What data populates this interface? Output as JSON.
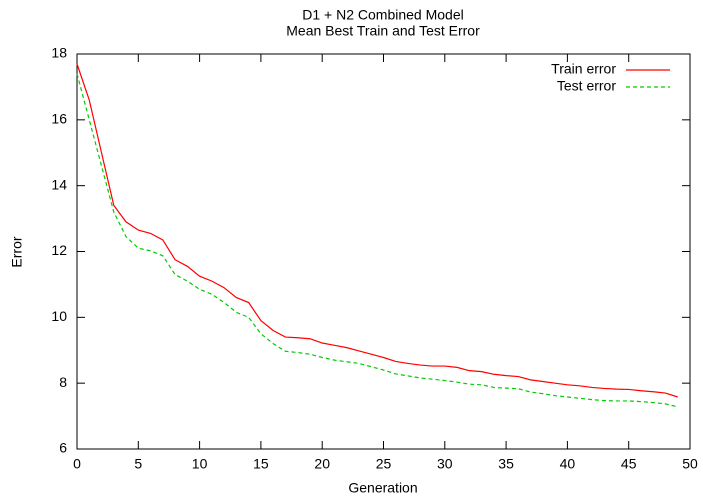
{
  "chart_data": {
    "type": "line",
    "title": "D1 + N2 Combined Model",
    "subtitle": "Mean Best Train and Test Error",
    "x_label": "Generation",
    "y_label": "Error",
    "x": [
      0,
      1,
      2,
      3,
      4,
      5,
      6,
      7,
      8,
      9,
      10,
      11,
      12,
      13,
      14,
      15,
      16,
      17,
      18,
      19,
      20,
      21,
      22,
      23,
      24,
      25,
      26,
      27,
      28,
      29,
      30,
      31,
      32,
      33,
      34,
      35,
      36,
      37,
      38,
      39,
      40,
      41,
      42,
      43,
      44,
      45,
      46,
      47,
      48,
      49
    ],
    "series": [
      {
        "name": "Train error",
        "color": "#ff0000",
        "dash": "none",
        "values": [
          17.7,
          16.6,
          15.0,
          13.4,
          12.9,
          12.65,
          12.55,
          12.35,
          11.75,
          11.55,
          11.25,
          11.1,
          10.9,
          10.6,
          10.45,
          9.9,
          9.6,
          9.4,
          9.38,
          9.35,
          9.22,
          9.15,
          9.08,
          8.98,
          8.88,
          8.78,
          8.66,
          8.6,
          8.55,
          8.52,
          8.52,
          8.48,
          8.38,
          8.35,
          8.27,
          8.23,
          8.2,
          8.1,
          8.05,
          8.0,
          7.95,
          7.92,
          7.87,
          7.84,
          7.82,
          7.81,
          7.77,
          7.74,
          7.7,
          7.58
        ]
      },
      {
        "name": "Test error",
        "color": "#00cc00",
        "dash": "4 3",
        "values": [
          17.4,
          16.0,
          14.6,
          13.2,
          12.45,
          12.1,
          12.02,
          11.87,
          11.3,
          11.1,
          10.85,
          10.7,
          10.45,
          10.15,
          10.0,
          9.5,
          9.2,
          8.97,
          8.93,
          8.88,
          8.78,
          8.7,
          8.65,
          8.6,
          8.5,
          8.4,
          8.28,
          8.22,
          8.16,
          8.12,
          8.08,
          8.03,
          7.97,
          7.95,
          7.87,
          7.85,
          7.83,
          7.73,
          7.68,
          7.62,
          7.58,
          7.54,
          7.5,
          7.47,
          7.46,
          7.46,
          7.44,
          7.41,
          7.37,
          7.28
        ]
      }
    ],
    "xlim": [
      0,
      50
    ],
    "xticks": [
      0,
      5,
      10,
      15,
      20,
      25,
      30,
      35,
      40,
      45,
      50
    ],
    "ylim": [
      6,
      18
    ],
    "yticks": [
      6,
      8,
      10,
      12,
      14,
      16,
      18
    ],
    "legend": "top-right"
  }
}
